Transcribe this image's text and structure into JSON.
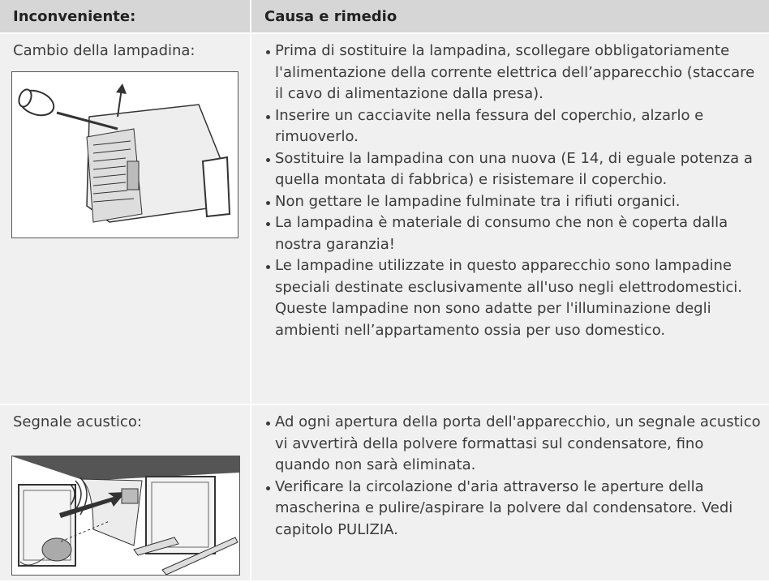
{
  "header": {
    "columns": [
      "Inconveniente:",
      "Causa e rimedio"
    ]
  },
  "rows": [
    {
      "problem": "Cambio della lampadina:",
      "remedies": [
        "Prima di sostituire la lampadina, scollegare obbligatoriamente l'alimentazione della corrente elettrica dell’apparecchio (staccare il cavo di alimentazione dalla presa).",
        "Inserire un cacciavite nella fessura del coperchio, alzarlo e rimuoverlo.",
        "Sostituire la lampadina con una nuova (E 14, di eguale potenza a quella montata di fabbrica) e risistemare il coperchio.",
        "Non gettare le lampadine fulminate tra i rifiuti organici.",
        "La lampadina è materiale di consumo che non è coperta dalla nostra garanzia!",
        "Le lampadine utilizzate in questo apparecchio sono lampadine speciali destinate esclusivamente all'uso negli elettrodomestici. Queste lampadine non sono adatte per l'illuminazione degli ambienti nell’appartamento ossia per uso domestico."
      ]
    },
    {
      "problem": "Segnale acustico:",
      "remedies": [
        "Ad ogni apertura della porta dell'apparecchio, un segnale acustico vi avvertirà della polvere formattasi sul condensatore, fino quando non sarà eliminata.",
        "Verificare la circolazione d'aria attraverso le aperture della mascherina e pulire/aspirare la polvere dal condensatore. Vedi capitolo PULIZIA."
      ]
    }
  ]
}
